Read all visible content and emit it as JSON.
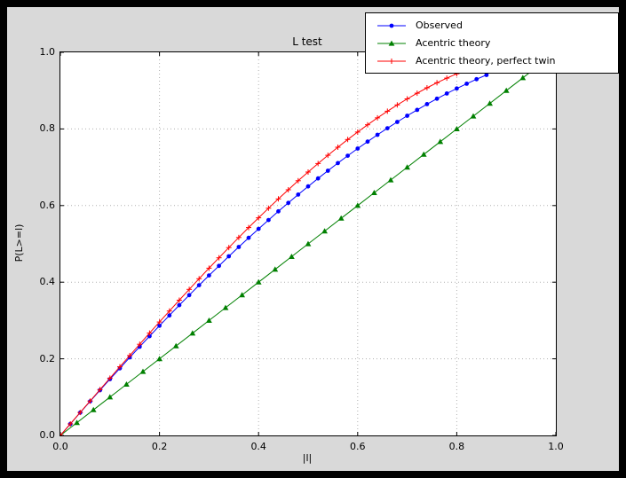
{
  "colors": {
    "frame_bg": "#000000",
    "figure_bg": "#d9d9d9",
    "plot_bg": "#ffffff",
    "grid": "#b0b0b0",
    "observed": "#0000ff",
    "acentric_theory": "#008000",
    "perfect_twin": "#ff0000"
  },
  "chart_data": {
    "type": "line",
    "title": "L test",
    "xlabel": "|l|",
    "ylabel": "P(L>=l)",
    "xlim": [
      0.0,
      1.0
    ],
    "ylim": [
      0.0,
      1.0
    ],
    "xticks": [
      0.0,
      0.2,
      0.4,
      0.6,
      0.8,
      1.0
    ],
    "yticks": [
      0.0,
      0.2,
      0.4,
      0.6,
      0.8,
      1.0
    ],
    "grid": true,
    "grid_style": "dotted",
    "legend_position": "upper right, overlapping figure top-right",
    "series": [
      {
        "name": "Observed",
        "color": "#0000ff",
        "marker": "circle",
        "x": [
          0.0,
          0.02,
          0.04,
          0.06,
          0.08,
          0.1,
          0.12,
          0.14,
          0.16,
          0.18,
          0.2,
          0.22,
          0.24,
          0.26,
          0.28,
          0.3,
          0.32,
          0.34,
          0.36,
          0.38,
          0.4,
          0.42,
          0.44,
          0.46,
          0.48,
          0.5,
          0.52,
          0.54,
          0.56,
          0.58,
          0.6,
          0.62,
          0.64,
          0.66,
          0.68,
          0.7,
          0.72,
          0.74,
          0.76,
          0.78,
          0.8,
          0.82,
          0.84,
          0.86
        ],
        "y": [
          0.0,
          0.0299,
          0.0595,
          0.0889,
          0.118,
          0.1468,
          0.1753,
          0.2036,
          0.2315,
          0.2591,
          0.2864,
          0.3133,
          0.34,
          0.3662,
          0.3921,
          0.4176,
          0.4427,
          0.4675,
          0.4918,
          0.5157,
          0.5392,
          0.5623,
          0.5849,
          0.607,
          0.6288,
          0.65,
          0.6708,
          0.691,
          0.7108,
          0.73,
          0.7488,
          0.767,
          0.7847,
          0.8018,
          0.8184,
          0.8344,
          0.8498,
          0.8647,
          0.8789,
          0.8926,
          0.9056,
          0.918,
          0.9298,
          0.9409
        ]
      },
      {
        "name": "Acentric theory",
        "color": "#008000",
        "marker": "triangle",
        "x": [
          0.0,
          0.0333,
          0.0667,
          0.1,
          0.1333,
          0.1667,
          0.2,
          0.2333,
          0.2667,
          0.3,
          0.3333,
          0.3667,
          0.4,
          0.4333,
          0.4667,
          0.5,
          0.5333,
          0.5667,
          0.6,
          0.6333,
          0.6667,
          0.7,
          0.7333,
          0.7667,
          0.8,
          0.8333,
          0.8667,
          0.9,
          0.9333,
          0.9667
        ],
        "y": [
          0.0,
          0.0333,
          0.0667,
          0.1,
          0.1333,
          0.1667,
          0.2,
          0.2333,
          0.2667,
          0.3,
          0.3333,
          0.3667,
          0.4,
          0.4333,
          0.4667,
          0.5,
          0.5333,
          0.5667,
          0.6,
          0.6333,
          0.6667,
          0.7,
          0.7333,
          0.7667,
          0.8,
          0.8333,
          0.8667,
          0.9,
          0.9333,
          0.9667
        ]
      },
      {
        "name": "Acentric theory, perfect twin",
        "color": "#ff0000",
        "marker": "plus",
        "x": [
          0.0,
          0.02,
          0.04,
          0.06,
          0.08,
          0.1,
          0.12,
          0.14,
          0.16,
          0.18,
          0.2,
          0.22,
          0.24,
          0.26,
          0.28,
          0.3,
          0.32,
          0.34,
          0.36,
          0.38,
          0.4,
          0.42,
          0.44,
          0.46,
          0.48,
          0.5,
          0.52,
          0.54,
          0.56,
          0.58,
          0.6,
          0.62,
          0.64,
          0.66,
          0.68,
          0.7,
          0.72,
          0.74,
          0.76,
          0.78,
          0.8,
          0.82,
          0.84
        ],
        "y": [
          0.0,
          0.03,
          0.06,
          0.0899,
          0.1197,
          0.1495,
          0.1791,
          0.2086,
          0.238,
          0.2671,
          0.296,
          0.3247,
          0.3531,
          0.3812,
          0.409,
          0.4365,
          0.4636,
          0.4903,
          0.5167,
          0.5426,
          0.568,
          0.593,
          0.6174,
          0.6413,
          0.6647,
          0.6875,
          0.7097,
          0.7313,
          0.7522,
          0.7724,
          0.792,
          0.8108,
          0.8289,
          0.8463,
          0.8628,
          0.8785,
          0.8934,
          0.9074,
          0.9205,
          0.9327,
          0.944,
          0.9543,
          0.9636
        ]
      }
    ]
  }
}
